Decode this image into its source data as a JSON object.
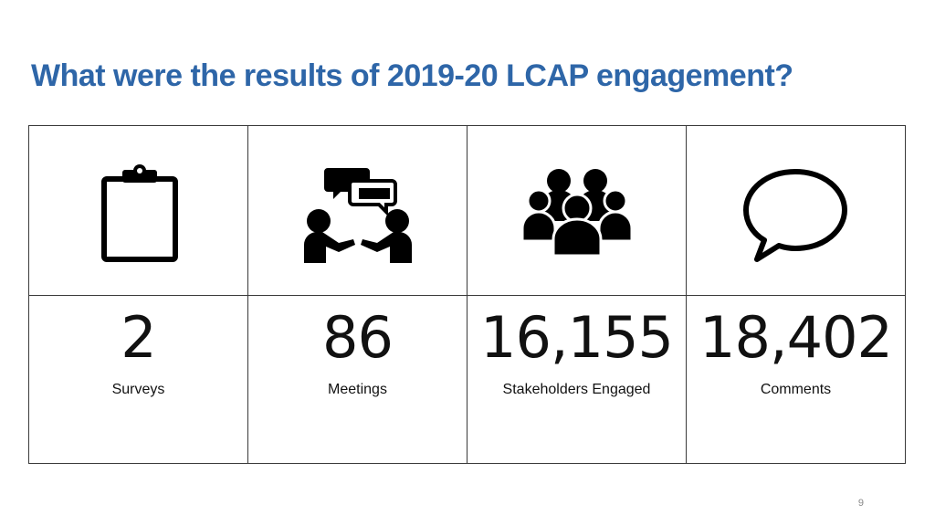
{
  "slide": {
    "title": "What were the results of 2019-20 LCAP engagement?",
    "page_number": "9"
  },
  "stats": [
    {
      "icon": "clipboard-icon",
      "value": "2",
      "label": "Surveys"
    },
    {
      "icon": "meeting-icon",
      "value": "86",
      "label": "Meetings"
    },
    {
      "icon": "people-group-icon",
      "value": "16,155",
      "label": "Stakeholders Engaged"
    },
    {
      "icon": "speech-bubble-icon",
      "value": "18,402",
      "label": "Comments"
    }
  ]
}
